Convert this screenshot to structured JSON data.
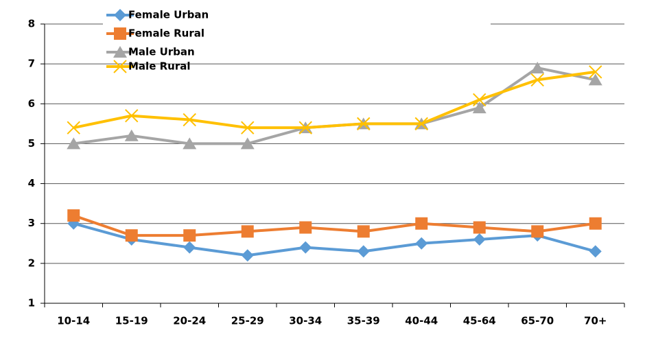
{
  "chart_data": {
    "type": "line",
    "categories": [
      "10-14",
      "15-19",
      "20-24",
      "25-29",
      "30-34",
      "35-39",
      "40-44",
      "45-64",
      "65-70",
      "70+"
    ],
    "series": [
      {
        "name": "Female Urban",
        "color": "#5b9bd5",
        "marker": "diamond",
        "values": [
          3.0,
          2.6,
          2.4,
          2.2,
          2.4,
          2.3,
          2.5,
          2.6,
          2.7,
          2.3
        ]
      },
      {
        "name": "Female Rural",
        "color": "#ed7d31",
        "marker": "square",
        "values": [
          3.2,
          2.7,
          2.7,
          2.8,
          2.9,
          2.8,
          3.0,
          2.9,
          2.8,
          3.0
        ]
      },
      {
        "name": "Male Urban",
        "color": "#a5a5a5",
        "marker": "triangle",
        "values": [
          5.0,
          5.2,
          5.0,
          5.0,
          5.4,
          5.5,
          5.5,
          5.9,
          6.9,
          6.6
        ]
      },
      {
        "name": "Male Rural",
        "color": "#ffc000",
        "marker": "x",
        "values": [
          5.4,
          5.7,
          5.6,
          5.4,
          5.4,
          5.5,
          5.5,
          6.1,
          6.6,
          6.8
        ]
      }
    ],
    "ylim": [
      1,
      8
    ],
    "yticks": [
      1,
      2,
      3,
      4,
      5,
      6,
      7,
      8
    ],
    "grid": true
  }
}
